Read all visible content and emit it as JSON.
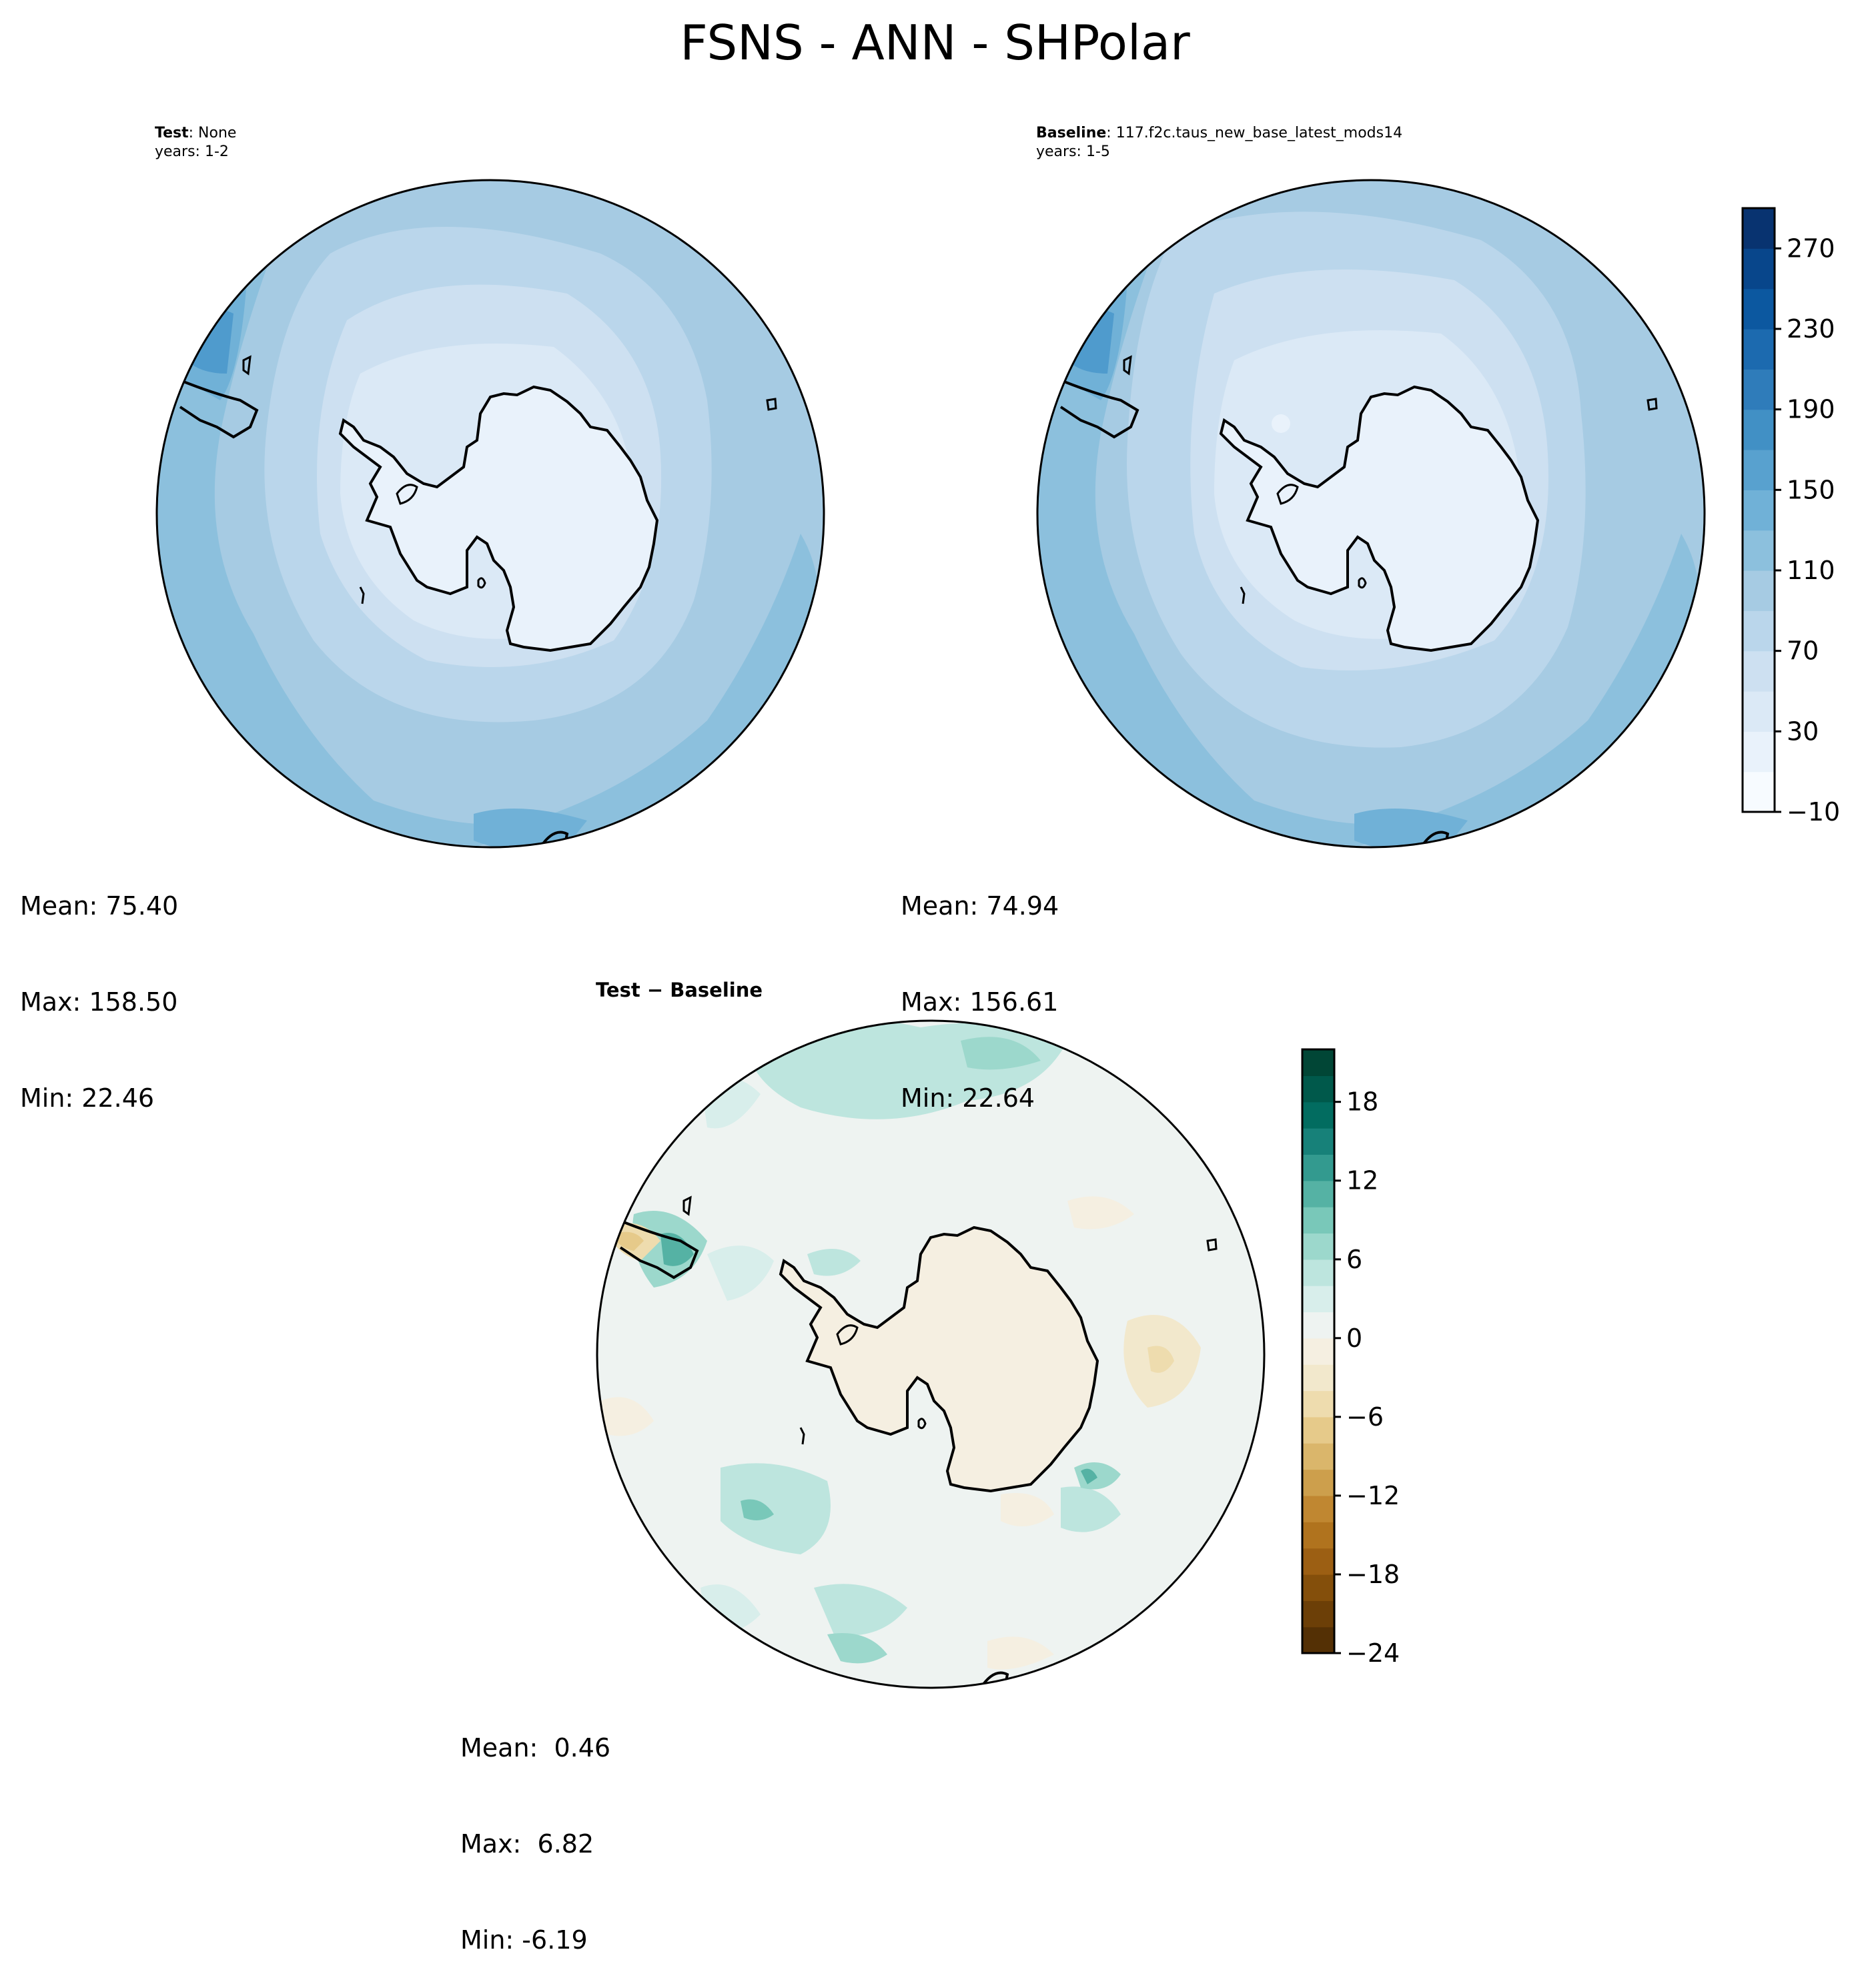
{
  "figure": {
    "title": "FSNS - ANN - SHPolar"
  },
  "panels": {
    "test": {
      "label_bold": "Test",
      "label_rest": ": None",
      "years": "years: 1-2",
      "stats": {
        "mean": "Mean: 75.40",
        "max": "Max: 158.50",
        "min": "Min: 22.46"
      }
    },
    "baseline": {
      "label_bold": "Baseline",
      "label_rest": ": 117.f2c.taus_new_base_latest_mods14",
      "years": "years: 1-5",
      "stats": {
        "mean": "Mean: 74.94",
        "max": "Max: 156.61",
        "min": "Min: 22.64"
      }
    },
    "diff": {
      "label_bold": "Test − Baseline",
      "stats": {
        "mean": "Mean:  0.46",
        "max": "Max:  6.82",
        "min": "Min: -6.19"
      }
    }
  },
  "colorbars": {
    "main": {
      "min": -10,
      "max": 290,
      "tick_values": [
        270,
        230,
        190,
        150,
        110,
        70,
        30,
        -10
      ],
      "tick_labels": [
        "270",
        "230",
        "190",
        "150",
        "110",
        "70",
        "30",
        "−10"
      ],
      "colors": [
        "#f7fbff",
        "#e9f2fb",
        "#dbe9f6",
        "#cde0f1",
        "#bad6eb",
        "#a6cbe3",
        "#8cc0dd",
        "#70b1d7",
        "#58a1cf",
        "#4190c5",
        "#2f7cba",
        "#1c6aaf",
        "#0c58a0",
        "#08468b",
        "#083370"
      ]
    },
    "diff": {
      "min": -24,
      "max": 22,
      "tick_values": [
        18,
        12,
        6,
        0,
        -6,
        -12,
        -18,
        -24
      ],
      "tick_labels": [
        "18",
        "12",
        "6",
        "0",
        "−6",
        "−12",
        "−18",
        "−24"
      ],
      "colors": [
        "#543005",
        "#6c3f07",
        "#844f0b",
        "#9c5f13",
        "#b0731e",
        "#c08731",
        "#cd9f4c",
        "#dab66b",
        "#e6ca8a",
        "#eedcae",
        "#f2e8cc",
        "#f5efe1",
        "#eef3f1",
        "#d8eeeb",
        "#bde5de",
        "#9cd8cc",
        "#79c8b9",
        "#55b2a4",
        "#339a8f",
        "#178179",
        "#026c60",
        "#00594b",
        "#014636"
      ]
    }
  }
}
